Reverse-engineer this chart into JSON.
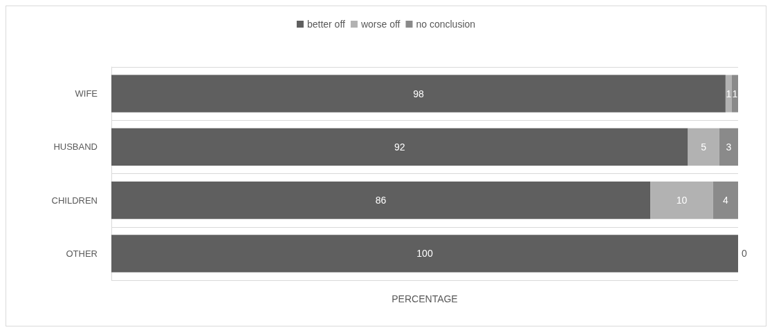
{
  "chart_data": {
    "type": "bar",
    "orientation": "horizontal",
    "stacked": true,
    "categories": [
      "WIFE",
      "HUSBAND",
      "CHILDREN",
      "OTHER"
    ],
    "xlabel": "PERCENTAGE",
    "xlim": [
      0,
      100
    ],
    "tick_labels": "y",
    "grid": "y",
    "legend": "top",
    "series": [
      {
        "name": "better off",
        "color": "#5f5f5f",
        "values": [
          98,
          92,
          86,
          100
        ],
        "value_labels": [
          "98",
          "92",
          "86",
          "100"
        ]
      },
      {
        "name": "worse off",
        "color": "#b2b2b2",
        "values": [
          1,
          5,
          10,
          0
        ],
        "value_labels": [
          "1",
          "5",
          "10",
          "0"
        ]
      },
      {
        "name": "no conclusion",
        "color": "#8a8a8a",
        "values": [
          1,
          3,
          4,
          0
        ],
        "value_labels": [
          "1",
          "3",
          "4",
          null
        ]
      }
    ]
  }
}
